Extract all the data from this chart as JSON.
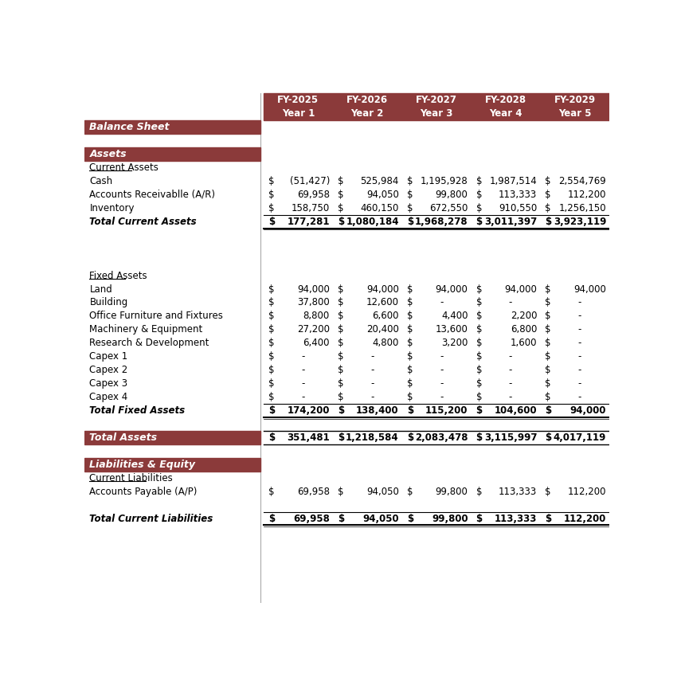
{
  "header_bg_color": "#8B3A3A",
  "section_bg_color": "#8B3A3A",
  "white": "#FFFFFF",
  "black": "#000000",
  "col_headers_line1": [
    "FY-2025",
    "FY-2026",
    "FY-2027",
    "FY-2028",
    "FY-2029"
  ],
  "col_headers_line2": [
    "Year 1",
    "Year 2",
    "Year 3",
    "Year 4",
    "Year 5"
  ],
  "rows": [
    {
      "type": "section",
      "label": "Balance Sheet",
      "values": null
    },
    {
      "type": "blank",
      "label": "",
      "values": null
    },
    {
      "type": "section",
      "label": "Assets",
      "values": null
    },
    {
      "type": "subheader",
      "label": "Current Assets",
      "values": null
    },
    {
      "type": "data",
      "label": "Cash",
      "values": [
        "(51,427)",
        "525,984",
        "1,195,928",
        "1,987,514",
        "2,554,769"
      ]
    },
    {
      "type": "data",
      "label": "Accounts Receivablle (A/R)",
      "values": [
        "69,958",
        "94,050",
        "99,800",
        "113,333",
        "112,200"
      ]
    },
    {
      "type": "data",
      "label": "Inventory",
      "values": [
        "158,750",
        "460,150",
        "672,550",
        "910,550",
        "1,256,150"
      ]
    },
    {
      "type": "total",
      "label": "Total Current Assets",
      "values": [
        "177,281",
        "1,080,184",
        "1,968,278",
        "3,011,397",
        "3,923,119"
      ]
    },
    {
      "type": "blank",
      "label": "",
      "values": null
    },
    {
      "type": "blank",
      "label": "",
      "values": null
    },
    {
      "type": "blank",
      "label": "",
      "values": null
    },
    {
      "type": "subheader",
      "label": "Fixed Assets",
      "values": null
    },
    {
      "type": "data",
      "label": "Land",
      "values": [
        "94,000",
        "94,000",
        "94,000",
        "94,000",
        "94,000"
      ]
    },
    {
      "type": "data",
      "label": "Building",
      "values": [
        "37,800",
        "12,600",
        "-",
        "-",
        "-"
      ]
    },
    {
      "type": "data",
      "label": "Office Furniture and Fixtures",
      "values": [
        "8,800",
        "6,600",
        "4,400",
        "2,200",
        "-"
      ]
    },
    {
      "type": "data",
      "label": "Machinery & Equipment",
      "values": [
        "27,200",
        "20,400",
        "13,600",
        "6,800",
        "-"
      ]
    },
    {
      "type": "data",
      "label": "Research & Development",
      "values": [
        "6,400",
        "4,800",
        "3,200",
        "1,600",
        "-"
      ]
    },
    {
      "type": "data",
      "label": "Capex 1",
      "values": [
        "-",
        "-",
        "-",
        "-",
        "-"
      ]
    },
    {
      "type": "data",
      "label": "Capex 2",
      "values": [
        "-",
        "-",
        "-",
        "-",
        "-"
      ]
    },
    {
      "type": "data",
      "label": "Capex 3",
      "values": [
        "-",
        "-",
        "-",
        "-",
        "-"
      ]
    },
    {
      "type": "data",
      "label": "Capex 4",
      "values": [
        "-",
        "-",
        "-",
        "-",
        "-"
      ]
    },
    {
      "type": "total",
      "label": "Total Fixed Assets",
      "values": [
        "174,200",
        "138,400",
        "115,200",
        "104,600",
        "94,000"
      ]
    },
    {
      "type": "blank",
      "label": "",
      "values": null
    },
    {
      "type": "section_total",
      "label": "Total Assets",
      "values": [
        "351,481",
        "1,218,584",
        "2,083,478",
        "3,115,997",
        "4,017,119"
      ]
    },
    {
      "type": "blank",
      "label": "",
      "values": null
    },
    {
      "type": "section",
      "label": "Liabilities & Equity",
      "values": null
    },
    {
      "type": "subheader",
      "label": "Current Liabilities",
      "values": null
    },
    {
      "type": "data",
      "label": "Accounts Payable (A/P)",
      "values": [
        "69,958",
        "94,050",
        "99,800",
        "113,333",
        "112,200"
      ]
    },
    {
      "type": "blank",
      "label": "",
      "values": null
    },
    {
      "type": "total",
      "label": "Total Current Liabilities",
      "values": [
        "69,958",
        "94,050",
        "99,800",
        "113,333",
        "112,200"
      ]
    }
  ]
}
